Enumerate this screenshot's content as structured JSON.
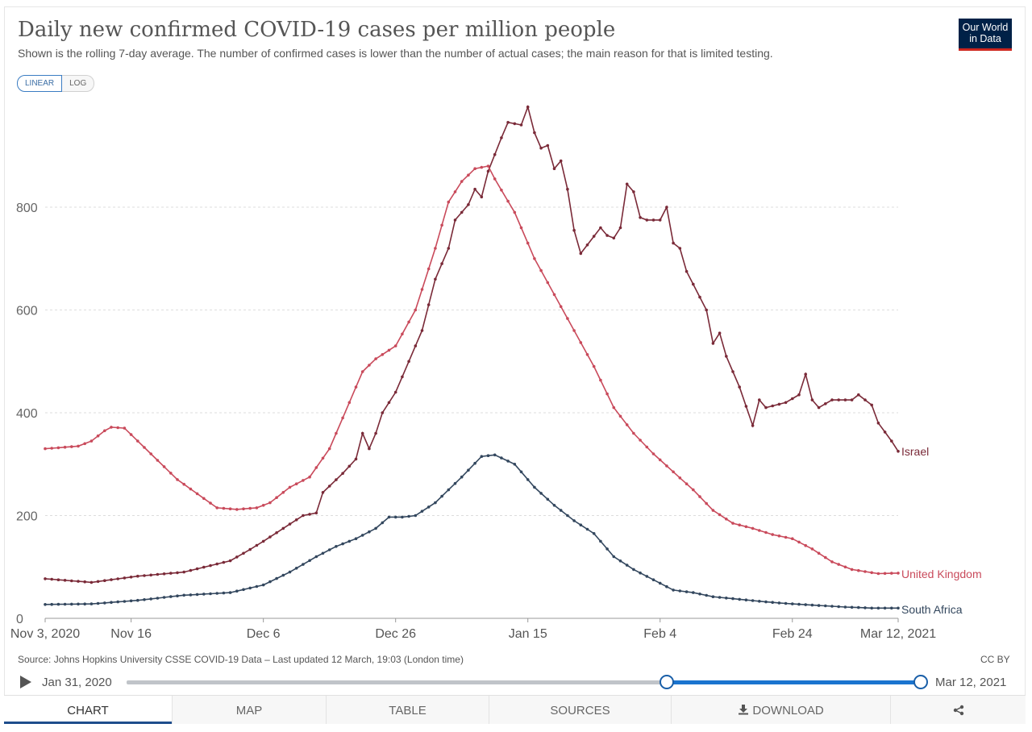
{
  "header": {
    "title": "Daily new confirmed COVID-19 cases per million people",
    "subtitle": "Shown is the rolling 7-day average. The number of confirmed cases is lower than the number of actual cases; the main reason for that is limited testing.",
    "logo_line1": "Our World",
    "logo_line2": "in Data"
  },
  "scale_toggle": {
    "linear_label": "LINEAR",
    "log_label": "LOG",
    "selected": "LINEAR"
  },
  "chart_data": {
    "type": "line",
    "title": "Daily new confirmed COVID-19 cases per million people",
    "x_start": "2020-11-03",
    "x_end": "2021-03-12",
    "y_ticks": [
      "0",
      "200",
      "400",
      "600",
      "800"
    ],
    "x_ticks": [
      {
        "label": "Nov 3, 2020",
        "date": "2020-11-03"
      },
      {
        "label": "Nov 16",
        "date": "2020-11-16"
      },
      {
        "label": "Dec 6",
        "date": "2020-12-06"
      },
      {
        "label": "Dec 26",
        "date": "2020-12-26"
      },
      {
        "label": "Jan 15",
        "date": "2021-01-15"
      },
      {
        "label": "Feb 4",
        "date": "2021-02-04"
      },
      {
        "label": "Feb 24",
        "date": "2021-02-24"
      },
      {
        "label": "Mar 12, 2021",
        "date": "2021-03-12"
      }
    ],
    "ylim": [
      0,
      1000
    ],
    "grid": "horizontal dashed",
    "series": [
      {
        "name": "Israel",
        "color": "#7a2a38",
        "keypoints": [
          [
            "2020-11-03",
            77
          ],
          [
            "2020-11-10",
            70
          ],
          [
            "2020-11-17",
            82
          ],
          [
            "2020-11-24",
            90
          ],
          [
            "2020-12-01",
            112
          ],
          [
            "2020-12-04",
            134
          ],
          [
            "2020-12-06",
            150
          ],
          [
            "2020-12-12",
            200
          ],
          [
            "2020-12-14",
            205
          ],
          [
            "2020-12-15",
            245
          ],
          [
            "2020-12-18",
            282
          ],
          [
            "2020-12-20",
            310
          ],
          [
            "2020-12-21",
            360
          ],
          [
            "2020-12-22",
            330
          ],
          [
            "2020-12-23",
            360
          ],
          [
            "2020-12-24",
            400
          ],
          [
            "2020-12-26",
            440
          ],
          [
            "2020-12-28",
            500
          ],
          [
            "2020-12-30",
            560
          ],
          [
            "2021-01-01",
            660
          ],
          [
            "2021-01-03",
            720
          ],
          [
            "2021-01-04",
            775
          ],
          [
            "2021-01-06",
            805
          ],
          [
            "2021-01-07",
            835
          ],
          [
            "2021-01-08",
            820
          ],
          [
            "2021-01-09",
            870
          ],
          [
            "2021-01-11",
            935
          ],
          [
            "2021-01-12",
            965
          ],
          [
            "2021-01-14",
            960
          ],
          [
            "2021-01-15",
            995
          ],
          [
            "2021-01-16",
            945
          ],
          [
            "2021-01-17",
            915
          ],
          [
            "2021-01-18",
            920
          ],
          [
            "2021-01-19",
            875
          ],
          [
            "2021-01-20",
            890
          ],
          [
            "2021-01-21",
            835
          ],
          [
            "2021-01-22",
            755
          ],
          [
            "2021-01-23",
            710
          ],
          [
            "2021-01-26",
            760
          ],
          [
            "2021-01-27",
            745
          ],
          [
            "2021-01-28",
            740
          ],
          [
            "2021-01-29",
            760
          ],
          [
            "2021-01-30",
            845
          ],
          [
            "2021-01-31",
            830
          ],
          [
            "2021-02-01",
            780
          ],
          [
            "2021-02-02",
            775
          ],
          [
            "2021-02-04",
            775
          ],
          [
            "2021-02-05",
            800
          ],
          [
            "2021-02-06",
            730
          ],
          [
            "2021-02-07",
            720
          ],
          [
            "2021-02-08",
            675
          ],
          [
            "2021-02-11",
            600
          ],
          [
            "2021-02-12",
            535
          ],
          [
            "2021-02-13",
            555
          ],
          [
            "2021-02-14",
            510
          ],
          [
            "2021-02-16",
            450
          ],
          [
            "2021-02-18",
            375
          ],
          [
            "2021-02-19",
            425
          ],
          [
            "2021-02-20",
            410
          ],
          [
            "2021-02-23",
            420
          ],
          [
            "2021-02-25",
            435
          ],
          [
            "2021-02-26",
            475
          ],
          [
            "2021-02-27",
            425
          ],
          [
            "2021-02-28",
            410
          ],
          [
            "2021-03-02",
            425
          ],
          [
            "2021-03-05",
            425
          ],
          [
            "2021-03-06",
            435
          ],
          [
            "2021-03-08",
            415
          ],
          [
            "2021-03-09",
            380
          ],
          [
            "2021-03-11",
            345
          ],
          [
            "2021-03-12",
            325
          ]
        ]
      },
      {
        "name": "United Kingdom",
        "color": "#c94a5b",
        "keypoints": [
          [
            "2020-11-03",
            330
          ],
          [
            "2020-11-08",
            335
          ],
          [
            "2020-11-10",
            345
          ],
          [
            "2020-11-12",
            365
          ],
          [
            "2020-11-13",
            372
          ],
          [
            "2020-11-15",
            370
          ],
          [
            "2020-11-17",
            345
          ],
          [
            "2020-11-23",
            270
          ],
          [
            "2020-11-29",
            215
          ],
          [
            "2020-12-02",
            212
          ],
          [
            "2020-12-05",
            215
          ],
          [
            "2020-12-07",
            225
          ],
          [
            "2020-12-10",
            255
          ],
          [
            "2020-12-13",
            275
          ],
          [
            "2020-12-16",
            330
          ],
          [
            "2020-12-19",
            420
          ],
          [
            "2020-12-21",
            480
          ],
          [
            "2020-12-23",
            505
          ],
          [
            "2020-12-26",
            530
          ],
          [
            "2020-12-29",
            600
          ],
          [
            "2021-01-01",
            720
          ],
          [
            "2021-01-03",
            810
          ],
          [
            "2021-01-05",
            850
          ],
          [
            "2021-01-07",
            875
          ],
          [
            "2021-01-09",
            880
          ],
          [
            "2021-01-10",
            855
          ],
          [
            "2021-01-13",
            790
          ],
          [
            "2021-01-16",
            700
          ],
          [
            "2021-01-19",
            630
          ],
          [
            "2021-01-22",
            560
          ],
          [
            "2021-01-25",
            490
          ],
          [
            "2021-01-28",
            410
          ],
          [
            "2021-01-31",
            360
          ],
          [
            "2021-02-03",
            320
          ],
          [
            "2021-02-06",
            285
          ],
          [
            "2021-02-09",
            250
          ],
          [
            "2021-02-12",
            210
          ],
          [
            "2021-02-15",
            185
          ],
          [
            "2021-02-18",
            175
          ],
          [
            "2021-02-21",
            163
          ],
          [
            "2021-02-24",
            155
          ],
          [
            "2021-02-27",
            135
          ],
          [
            "2021-03-02",
            110
          ],
          [
            "2021-03-05",
            95
          ],
          [
            "2021-03-09",
            87
          ],
          [
            "2021-03-12",
            88
          ]
        ]
      },
      {
        "name": "South Africa",
        "color": "#33475e",
        "keypoints": [
          [
            "2020-11-03",
            27
          ],
          [
            "2020-11-10",
            28
          ],
          [
            "2020-11-17",
            35
          ],
          [
            "2020-11-24",
            45
          ],
          [
            "2020-12-01",
            50
          ],
          [
            "2020-12-06",
            65
          ],
          [
            "2020-12-10",
            90
          ],
          [
            "2020-12-14",
            120
          ],
          [
            "2020-12-17",
            140
          ],
          [
            "2020-12-20",
            155
          ],
          [
            "2020-12-23",
            175
          ],
          [
            "2020-12-25",
            197
          ],
          [
            "2020-12-27",
            197
          ],
          [
            "2020-12-29",
            200
          ],
          [
            "2021-01-01",
            225
          ],
          [
            "2021-01-05",
            275
          ],
          [
            "2021-01-08",
            315
          ],
          [
            "2021-01-10",
            318
          ],
          [
            "2021-01-13",
            300
          ],
          [
            "2021-01-16",
            255
          ],
          [
            "2021-01-19",
            220
          ],
          [
            "2021-01-22",
            190
          ],
          [
            "2021-01-25",
            165
          ],
          [
            "2021-01-28",
            120
          ],
          [
            "2021-01-31",
            95
          ],
          [
            "2021-02-03",
            75
          ],
          [
            "2021-02-06",
            55
          ],
          [
            "2021-02-09",
            50
          ],
          [
            "2021-02-12",
            42
          ],
          [
            "2021-02-16",
            37
          ],
          [
            "2021-02-20",
            32
          ],
          [
            "2021-02-24",
            28
          ],
          [
            "2021-02-28",
            25
          ],
          [
            "2021-03-04",
            22
          ],
          [
            "2021-03-08",
            20
          ],
          [
            "2021-03-12",
            20
          ]
        ]
      }
    ]
  },
  "footer": {
    "source": "Source: Johns Hopkins University CSSE COVID-19 Data – Last updated 12 March, 19:03 (London time)",
    "license": "CC BY"
  },
  "timeline": {
    "start_label": "Jan 31, 2020",
    "end_label": "Mar 12, 2021",
    "selection_start_fraction": 0.68,
    "selection_end_fraction": 1.0
  },
  "tabs": [
    {
      "label": "CHART",
      "active": true
    },
    {
      "label": "MAP"
    },
    {
      "label": "TABLE"
    },
    {
      "label": "SOURCES"
    },
    {
      "label": "DOWNLOAD",
      "icon": "download-icon"
    },
    {
      "label": "",
      "icon": "share-icon"
    }
  ]
}
